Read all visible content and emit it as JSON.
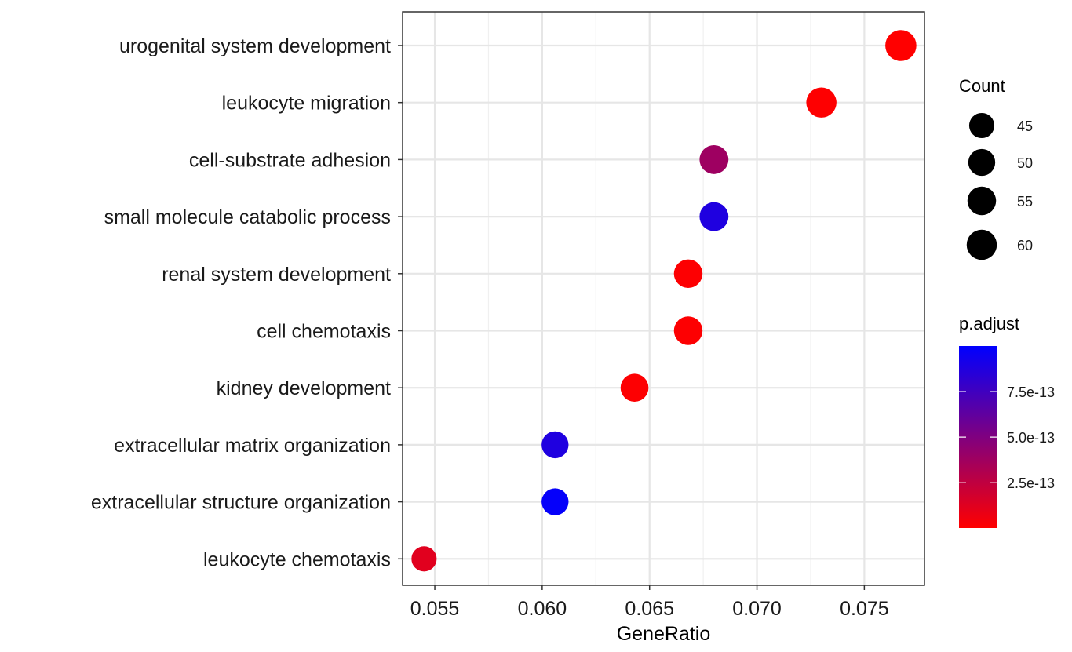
{
  "chart_data": {
    "type": "scatter",
    "title": "",
    "xlabel": "GeneRatio",
    "ylabel": "",
    "xlim": [
      0.0535,
      0.0778
    ],
    "xticks": [
      0.055,
      0.06,
      0.065,
      0.07,
      0.075
    ],
    "xtick_labels": [
      "0.055",
      "0.060",
      "0.065",
      "0.070",
      "0.075"
    ],
    "grid": true,
    "categories": [
      "urogenital system development",
      "leukocyte migration",
      "cell-substrate adhesion",
      "small molecule catabolic process",
      "renal system development",
      "cell chemotaxis",
      "kidney development",
      "extracellular matrix organization",
      "extracellular structure organization",
      "leukocyte chemotaxis"
    ],
    "points": [
      {
        "term": "urogenital system development",
        "gene_ratio": 0.0767,
        "count": 63,
        "p_adjust": 1e-15
      },
      {
        "term": "leukocyte migration",
        "gene_ratio": 0.073,
        "count": 60,
        "p_adjust": 5e-15
      },
      {
        "term": "cell-substrate adhesion",
        "gene_ratio": 0.068,
        "count": 56,
        "p_adjust": 3.8e-13
      },
      {
        "term": "small molecule catabolic process",
        "gene_ratio": 0.068,
        "count": 56,
        "p_adjust": 8.8e-13
      },
      {
        "term": "renal system development",
        "gene_ratio": 0.0668,
        "count": 55,
        "p_adjust": 1e-14
      },
      {
        "term": "cell chemotaxis",
        "gene_ratio": 0.0668,
        "count": 55,
        "p_adjust": 1e-14
      },
      {
        "term": "kidney development",
        "gene_ratio": 0.0643,
        "count": 53,
        "p_adjust": 1e-14
      },
      {
        "term": "extracellular matrix organization",
        "gene_ratio": 0.0606,
        "count": 50,
        "p_adjust": 8.8e-13
      },
      {
        "term": "extracellular structure organization",
        "gene_ratio": 0.0606,
        "count": 50,
        "p_adjust": 9.8e-13
      },
      {
        "term": "leukocyte chemotaxis",
        "gene_ratio": 0.0545,
        "count": 45,
        "p_adjust": 1.2e-13
      }
    ],
    "size_legend": {
      "title": "Count",
      "values": [
        45,
        50,
        55,
        60
      ],
      "labels": [
        "45",
        "50",
        "55",
        "60"
      ]
    },
    "color_legend": {
      "title": "p.adjust",
      "min": 1e-15,
      "max": 1e-12,
      "ticks": [
        2.5e-13,
        5e-13,
        7.5e-13
      ],
      "labels": [
        "2.5e-13",
        "5.0e-13",
        "7.5e-13"
      ],
      "low_color": "#FF0000",
      "high_color": "#0000FF"
    }
  }
}
